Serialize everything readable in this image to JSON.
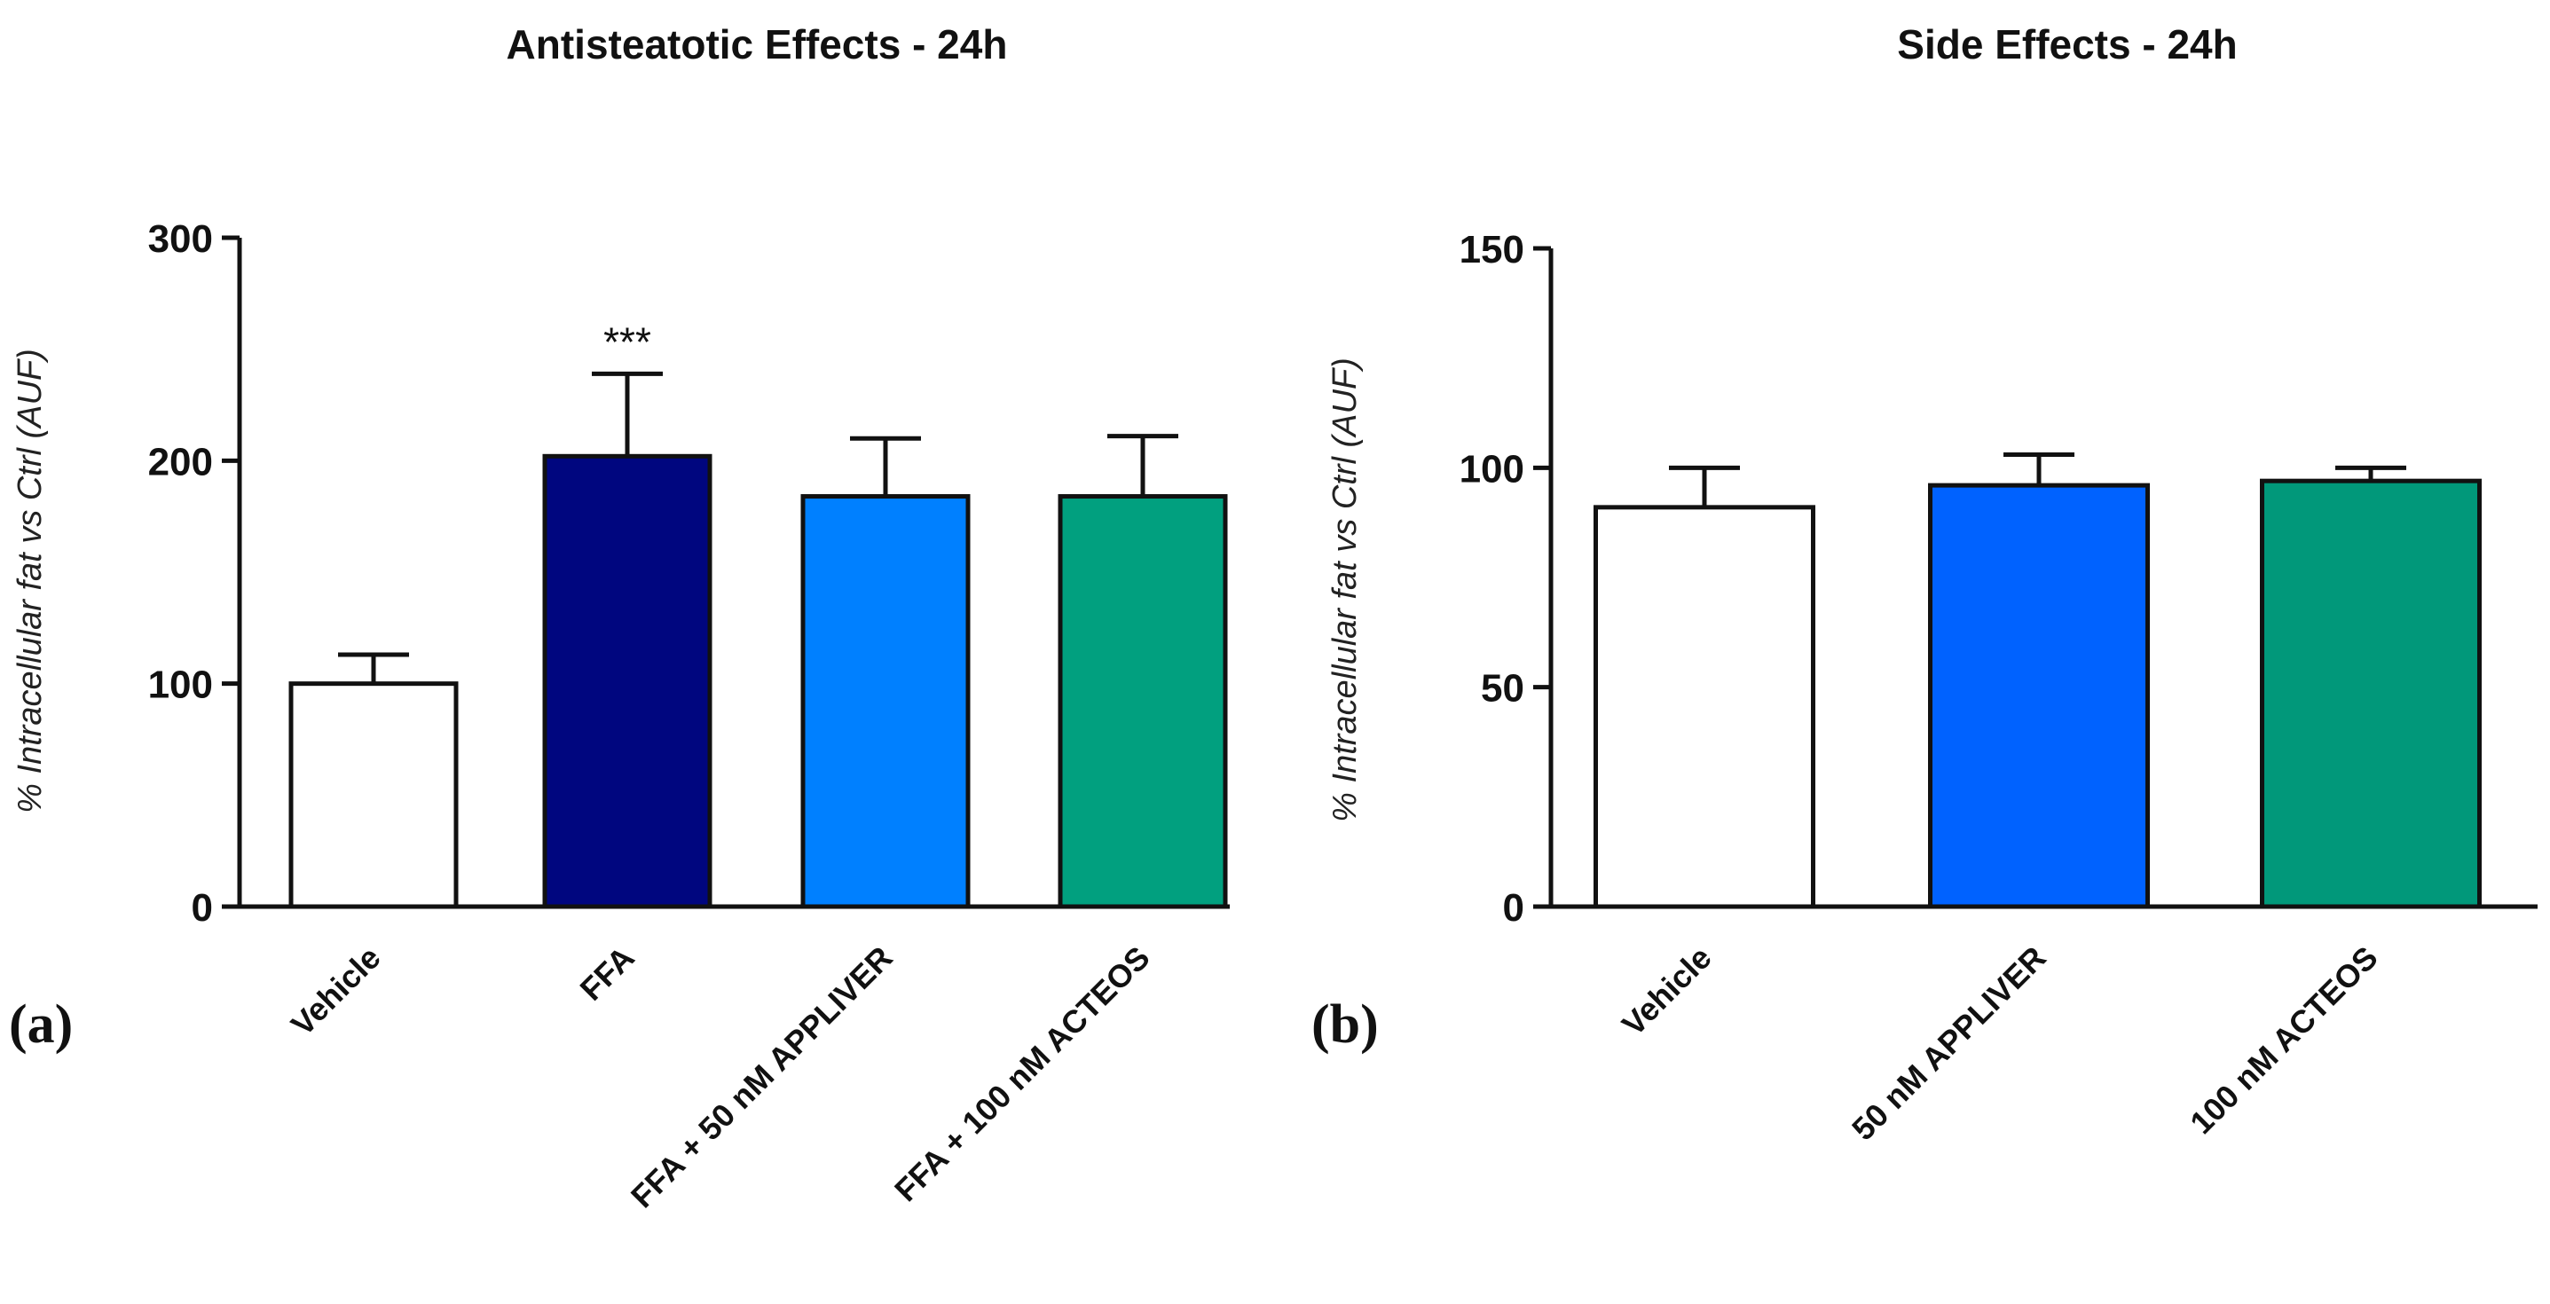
{
  "chart_data": [
    {
      "type": "bar",
      "panel_label": "(a)",
      "title": "Antisteatotic Effects - 24h",
      "ylabel": "% Intracellular fat vs Ctrl (AUF)",
      "xlabel": "",
      "ylim": [
        0,
        300
      ],
      "yticks": [
        0,
        100,
        200,
        300
      ],
      "categories": [
        "Vehicle",
        "FFA",
        "FFA + 50 nM APPLIVER",
        "FFA + 100 nM ACTEOS"
      ],
      "values": [
        100,
        202,
        184,
        184
      ],
      "errors": [
        13,
        37,
        26,
        27
      ],
      "colors": [
        "#ffffff",
        "#00067f",
        "#0080ff",
        "#01a07f"
      ],
      "annotations": [
        "",
        "***",
        "",
        ""
      ]
    },
    {
      "type": "bar",
      "panel_label": "(b)",
      "title": "Side Effects - 24h",
      "ylabel": "% Intracellular fat vs Ctrl (AUF)",
      "xlabel": "",
      "ylim": [
        0,
        150
      ],
      "yticks": [
        0,
        50,
        100,
        150
      ],
      "categories": [
        "Vehicle",
        "50 nM APPLIVER",
        "100 nM ACTEOS"
      ],
      "values": [
        91,
        96,
        97
      ],
      "errors": [
        9,
        7,
        3
      ],
      "colors": [
        "#ffffff",
        "#0062ff",
        "#01987a"
      ],
      "annotations": [
        "",
        "",
        ""
      ]
    }
  ]
}
